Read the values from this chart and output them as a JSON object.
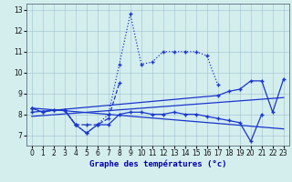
{
  "title": "Graphe des températures (°c)",
  "bg_color": "#d4eeee",
  "line_color": "#1a35cc",
  "ylim": [
    6.5,
    13.3
  ],
  "xlim": [
    -0.5,
    23.5
  ],
  "yticks": [
    7,
    8,
    9,
    10,
    11,
    12,
    13
  ],
  "xticks": [
    0,
    1,
    2,
    3,
    4,
    5,
    6,
    7,
    8,
    9,
    10,
    11,
    12,
    13,
    14,
    15,
    16,
    17,
    18,
    19,
    20,
    21,
    22,
    23
  ],
  "series": [
    {
      "x": [
        0,
        1,
        2,
        3,
        4,
        5,
        6,
        7,
        8,
        9,
        10,
        11,
        12,
        13,
        14,
        15,
        16,
        17
      ],
      "y": [
        8.3,
        8.1,
        8.2,
        8.2,
        7.5,
        7.1,
        7.5,
        8.0,
        10.4,
        12.8,
        10.4,
        10.5,
        11.0,
        11.0,
        11.0,
        11.0,
        10.8,
        9.4
      ],
      "style": "dotted",
      "marker": true
    },
    {
      "x": [
        3,
        4,
        5,
        6,
        7,
        8
      ],
      "y": [
        8.2,
        7.5,
        7.5,
        7.5,
        7.8,
        9.5
      ],
      "style": "dashed",
      "marker": true
    },
    {
      "x": [
        0,
        1,
        2,
        3,
        4,
        5,
        6,
        7,
        8,
        9,
        10,
        11,
        12,
        13,
        14,
        15,
        16,
        17,
        18,
        19,
        20,
        21
      ],
      "y": [
        8.3,
        8.1,
        8.2,
        8.2,
        7.5,
        7.1,
        7.5,
        7.5,
        8.0,
        8.1,
        8.1,
        8.0,
        8.0,
        8.1,
        8.0,
        8.0,
        7.9,
        7.8,
        7.7,
        7.6,
        6.7,
        8.0
      ],
      "style": "solid",
      "marker": true
    },
    {
      "x": [
        0,
        17,
        18,
        19,
        20,
        21,
        22,
        23
      ],
      "y": [
        8.1,
        8.9,
        9.1,
        9.2,
        9.6,
        9.6,
        8.1,
        9.7
      ],
      "style": "solid",
      "marker": true
    },
    {
      "x": [
        0,
        23
      ],
      "y": [
        8.3,
        7.3
      ],
      "style": "solid",
      "marker": false
    },
    {
      "x": [
        0,
        23
      ],
      "y": [
        7.9,
        8.8
      ],
      "style": "solid",
      "marker": false
    }
  ]
}
